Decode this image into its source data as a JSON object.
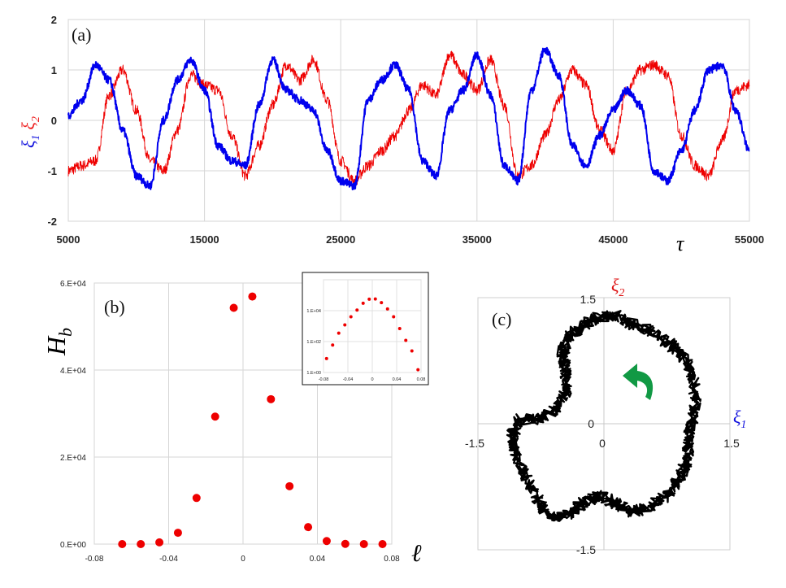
{
  "chart_data": [
    {
      "panel": "(a)",
      "type": "line",
      "xlim": [
        5000,
        55000
      ],
      "ylim": [
        -2,
        2
      ],
      "x_ticks": [
        "5000",
        "15000",
        "25000",
        "35000",
        "45000",
        "55000"
      ],
      "y_ticks": [
        "2",
        "1",
        "0",
        "-1",
        "-2"
      ],
      "xlabel": "τ",
      "ylabel_parts": [
        {
          "sym": "ξ",
          "sub": "1",
          "color": "#1111dd"
        },
        {
          "sym": "ξ",
          "sub": "2",
          "color": "#ee2222"
        }
      ],
      "grid": true,
      "series": [
        {
          "name": "ξ1",
          "color": "#0000ee",
          "x": [
            5000,
            6000,
            7000,
            8000,
            9000,
            10000,
            11000,
            12000,
            13000,
            14000,
            15000,
            16000,
            17000,
            18000,
            19000,
            20000,
            21000,
            22000,
            23000,
            24000,
            25000,
            26000,
            27000,
            28000,
            29000,
            30000,
            31000,
            32000,
            33000,
            34000,
            35000,
            36000,
            37000,
            38000,
            39000,
            40000,
            41000,
            42000,
            43000,
            44000,
            45000,
            46000,
            47000,
            48000,
            49000,
            50000,
            51000,
            52000,
            53000,
            54000,
            55000
          ],
          "y": [
            0.1,
            0.4,
            1.1,
            0.8,
            -0.2,
            -1.1,
            -1.3,
            0.0,
            0.8,
            1.2,
            0.6,
            -0.5,
            -0.8,
            -0.9,
            0.3,
            1.2,
            0.6,
            0.4,
            0.2,
            -0.6,
            -1.2,
            -1.3,
            0.4,
            0.8,
            1.1,
            0.6,
            -0.8,
            -1.1,
            0.2,
            0.6,
            1.3,
            0.5,
            -0.9,
            -1.2,
            0.6,
            1.4,
            0.9,
            -0.5,
            -0.9,
            -0.3,
            0.2,
            0.6,
            0.3,
            -1.0,
            -1.2,
            -0.6,
            0.2,
            1.0,
            1.1,
            0.2,
            -0.6
          ]
        },
        {
          "name": "ξ2",
          "color": "#ee0000",
          "x": [
            5000,
            6000,
            7000,
            8000,
            9000,
            10000,
            11000,
            12000,
            13000,
            14000,
            15000,
            16000,
            17000,
            18000,
            19000,
            20000,
            21000,
            22000,
            23000,
            24000,
            25000,
            26000,
            27000,
            28000,
            29000,
            30000,
            31000,
            32000,
            33000,
            34000,
            35000,
            36000,
            37000,
            38000,
            39000,
            40000,
            41000,
            42000,
            43000,
            44000,
            45000,
            46000,
            47000,
            48000,
            49000,
            50000,
            51000,
            52000,
            53000,
            54000,
            55000
          ],
          "y": [
            -1.0,
            -0.9,
            -0.8,
            0.5,
            1.0,
            0.2,
            -0.8,
            -1.0,
            -0.2,
            0.9,
            0.7,
            0.6,
            -0.3,
            -1.1,
            -0.5,
            0.3,
            1.1,
            0.8,
            1.2,
            0.4,
            -0.8,
            -1.2,
            -0.9,
            -0.6,
            -0.3,
            0.2,
            0.7,
            0.5,
            1.3,
            0.9,
            0.6,
            1.2,
            0.3,
            -1.1,
            -0.9,
            -0.3,
            0.4,
            1.0,
            0.7,
            -0.2,
            -0.6,
            0.6,
            1.0,
            1.1,
            0.9,
            -0.3,
            -0.9,
            -1.1,
            -0.4,
            0.6,
            0.7
          ]
        }
      ]
    },
    {
      "panel": "(b)",
      "type": "scatter",
      "xlim": [
        -0.08,
        0.08
      ],
      "ylim": [
        0,
        60000
      ],
      "x_ticks": [
        "-0.08",
        "-0.04",
        "0",
        "0.04",
        "0.08"
      ],
      "x_tick_values": [
        -0.08,
        -0.04,
        0,
        0.04,
        0.08
      ],
      "y_ticks": [
        "6.E+04",
        "4.E+04",
        "2.E+04",
        "0.E+00"
      ],
      "y_tick_values": [
        60000,
        40000,
        20000,
        0
      ],
      "xlabel": "ℓ",
      "ylabel": "H",
      "ylabel_sub": "b",
      "grid": true,
      "color": "#ee0000",
      "x": [
        -0.065,
        -0.055,
        -0.045,
        -0.035,
        -0.025,
        -0.015,
        -0.005,
        0.005,
        0.015,
        0.025,
        0.035,
        0.045,
        0.055,
        0.065,
        0.075
      ],
      "y": [
        0,
        0,
        400,
        2600,
        10600,
        29300,
        54300,
        56900,
        33300,
        13300,
        3900,
        700,
        50,
        10,
        2
      ],
      "inset": {
        "type": "scatter",
        "yscale": "log",
        "xlim": [
          -0.08,
          0.08
        ],
        "ylim": [
          1,
          1000000
        ],
        "x_ticks": [
          "-0.08",
          "-0.04",
          "0",
          "0.04",
          "0.08"
        ],
        "x_tick_values": [
          -0.08,
          -0.04,
          0,
          0.04,
          0.08
        ],
        "y_ticks": [
          "1.E+04",
          "1.E+02",
          "1.E+00"
        ],
        "y_tick_values": [
          10000,
          100,
          1
        ],
        "x": [
          -0.075,
          -0.065,
          -0.055,
          -0.045,
          -0.035,
          -0.025,
          -0.015,
          -0.005,
          0.005,
          0.015,
          0.025,
          0.035,
          0.045,
          0.055,
          0.065,
          0.075
        ],
        "y": [
          8,
          60,
          350,
          1200,
          4000,
          11000,
          30000,
          55000,
          57000,
          33000,
          13000,
          4000,
          700,
          120,
          25,
          1.5
        ]
      }
    },
    {
      "panel": "(c)",
      "type": "line",
      "xlim": [
        -1.5,
        1.5
      ],
      "ylim": [
        -1.5,
        1.5
      ],
      "x_ticks": [
        "-1.5",
        "0",
        "1.5"
      ],
      "y_ticks": [
        "1.5",
        "0",
        "-1.5"
      ],
      "xlabel": "ξ",
      "xlabel_sub": "1",
      "xlabel_color": "#1111dd",
      "ylabel": "ξ",
      "ylabel_sub": "2",
      "ylabel_color": "#dd1111",
      "arrow_color": "#119944",
      "rotation": "counter-clockwise",
      "grid": true,
      "color": "#000000",
      "x": [
        0.1,
        0.3,
        0.55,
        0.8,
        0.95,
        1.05,
        1.1,
        1.05,
        1.0,
        1.0,
        0.9,
        0.75,
        0.55,
        0.35,
        0.15,
        -0.05,
        -0.25,
        -0.45,
        -0.65,
        -0.8,
        -0.95,
        -1.05,
        -1.1,
        -1.0,
        -0.8,
        -0.6,
        -0.45,
        -0.45,
        -0.5,
        -0.4,
        -0.25,
        -0.1,
        0.1
      ],
      "y": [
        1.3,
        1.2,
        1.1,
        0.95,
        0.8,
        0.6,
        0.3,
        0.05,
        -0.2,
        -0.45,
        -0.65,
        -0.85,
        -1.0,
        -1.05,
        -0.95,
        -0.85,
        -0.95,
        -1.1,
        -1.1,
        -0.9,
        -0.6,
        -0.35,
        -0.15,
        0.05,
        0.05,
        0.15,
        0.35,
        0.6,
        0.85,
        1.05,
        1.15,
        1.25,
        1.3
      ]
    }
  ]
}
